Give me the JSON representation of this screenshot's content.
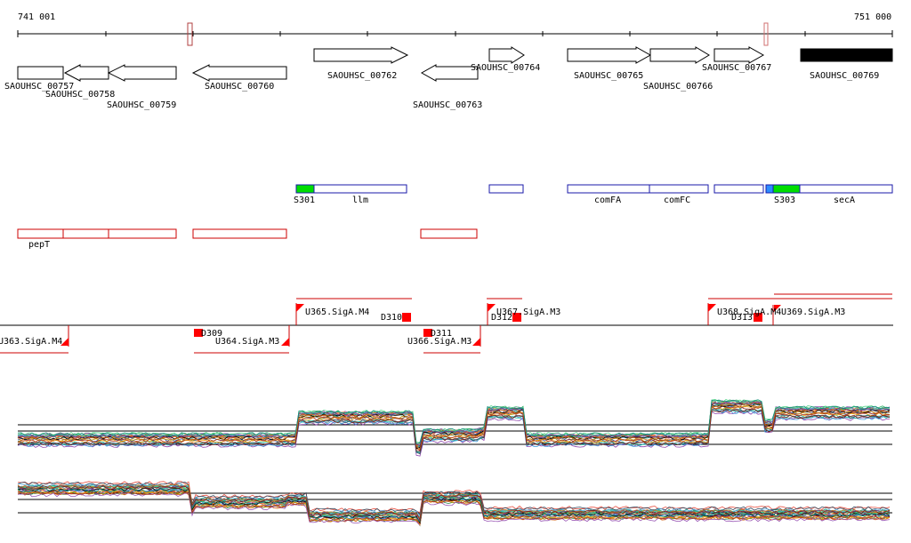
{
  "ruler": {
    "start_label": "741 001",
    "end_label": "751 000"
  },
  "colors": {
    "cds_stroke": "#000000",
    "cds_filled": "#000000",
    "operon": "#cc0000",
    "transcript_box": "#1a1aaa",
    "site_green": "#00dd00",
    "site_blue": "#2b8cff",
    "promoter_red": "#ff0000",
    "marker_outline": "#b04040"
  },
  "genes": [
    {
      "label": "SAOUHSC_00757",
      "strand": "+"
    },
    {
      "label": "SAOUHSC_00758",
      "strand": "-"
    },
    {
      "label": "SAOUHSC_00759",
      "strand": "-"
    },
    {
      "label": "SAOUHSC_00760",
      "strand": "-"
    },
    {
      "label": "SAOUHSC_00762",
      "strand": "+"
    },
    {
      "label": "SAOUHSC_00763",
      "strand": "-"
    },
    {
      "label": "SAOUHSC_00764",
      "strand": "+"
    },
    {
      "label": "SAOUHSC_00765",
      "strand": "+"
    },
    {
      "label": "SAOUHSC_00766",
      "strand": "+"
    },
    {
      "label": "SAOUHSC_00767",
      "strand": "+"
    },
    {
      "label": "SAOUHSC_00769",
      "strand": "filled"
    }
  ],
  "transcripts": [
    {
      "label": "S301"
    },
    {
      "label": "llm"
    },
    {
      "label": "comFA"
    },
    {
      "label": "comFC"
    },
    {
      "label": "S303"
    },
    {
      "label": "secA"
    }
  ],
  "operons": [
    {
      "label": "pepT"
    }
  ],
  "promoters": [
    {
      "label": "U363.SigA.M4"
    },
    {
      "label": "D309"
    },
    {
      "label": "U364.SigA.M3"
    },
    {
      "label": "U365.SigA.M4"
    },
    {
      "label": "D310"
    },
    {
      "label": "D311"
    },
    {
      "label": "U366.SigA.M3"
    },
    {
      "label": "U367.SigA.M3"
    },
    {
      "label": "D312"
    },
    {
      "label": "U368.SigA.M4"
    },
    {
      "label": "D313"
    },
    {
      "label": "U369.SigA.M3"
    }
  ]
}
